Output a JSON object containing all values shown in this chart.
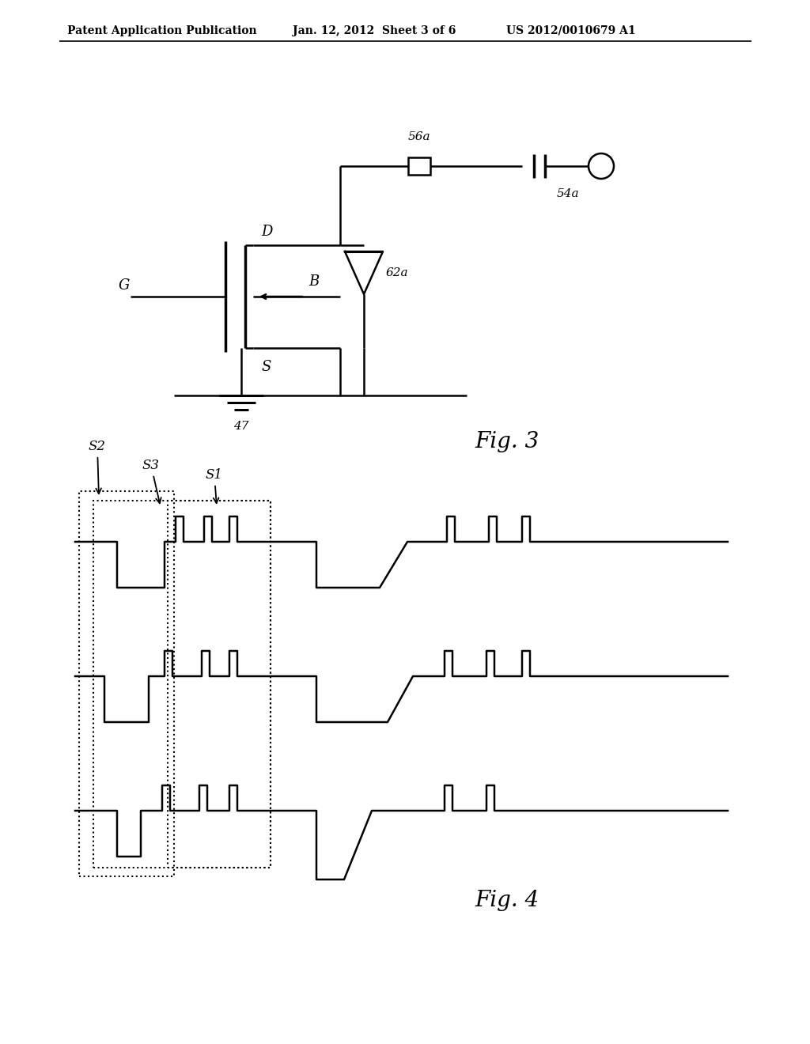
{
  "header_left": "Patent Application Publication",
  "header_mid": "Jan. 12, 2012  Sheet 3 of 6",
  "header_right": "US 2012/0010679 A1",
  "fig3_label": "Fig. 3",
  "fig4_label": "Fig. 4",
  "bg_color": "#ffffff",
  "line_color": "#000000",
  "fig3_labels": {
    "G": "G",
    "D": "D",
    "B": "B",
    "S": "S",
    "56a": "56a",
    "54a": "54a",
    "62a": "62a",
    "47": "47"
  },
  "fig4_labels": {
    "S1": "S1",
    "S2": "S2",
    "S3": "S3"
  }
}
